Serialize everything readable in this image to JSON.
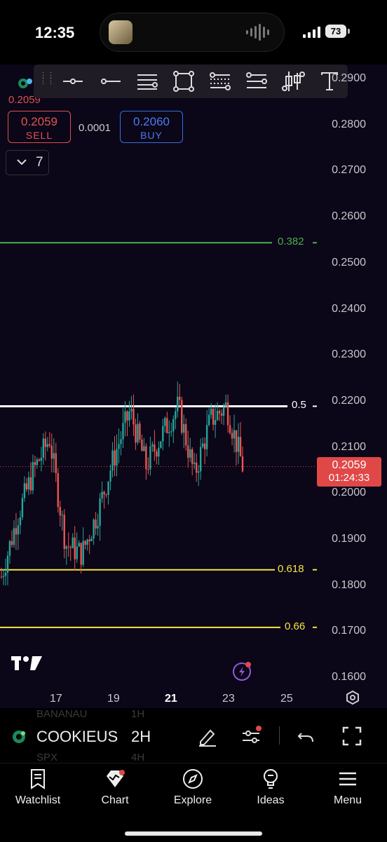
{
  "status_bar": {
    "time": "12:35",
    "battery": "73"
  },
  "toolbar": {
    "tools": [
      "horizontal-ray-icon",
      "ray-icon",
      "parallel-channel-icon",
      "rectangle-icon",
      "fib-retracement-icon",
      "fib-extension-icon",
      "candles-icon",
      "text-tool-icon"
    ]
  },
  "chart": {
    "legend_price": "0.2059",
    "sell": {
      "price": "0.2059",
      "label": "SELL"
    },
    "spread": "0.0001",
    "buy": {
      "price": "0.2060",
      "label": "BUY"
    },
    "indicators_count": "7",
    "price_axis": [
      "0.2900",
      "0.2800",
      "0.2700",
      "0.2600",
      "0.2500",
      "0.2400",
      "0.2300",
      "0.2200",
      "0.2100",
      "0.2000",
      "0.1900",
      "0.1800",
      "0.1700",
      "0.1600"
    ],
    "date_axis": [
      "17",
      "19",
      "21",
      "23",
      "25"
    ],
    "current_price": "0.2059",
    "countdown": "01:24:33",
    "fib_levels": [
      {
        "label": "0.382",
        "color": "#4caf50"
      },
      {
        "label": "0.5",
        "color": "#ffffff"
      },
      {
        "label": "0.618",
        "color": "#f5e642"
      },
      {
        "label": "0.66",
        "color": "#f5e642"
      }
    ],
    "colors": {
      "up": "#26a69a",
      "down": "#ef5350",
      "background": "#0b0618"
    }
  },
  "chart_data": {
    "type": "candlestick",
    "x": [
      "16",
      "17",
      "18",
      "19",
      "20",
      "21",
      "22",
      "23"
    ],
    "xlabel": "",
    "ylabel": "",
    "ylim": [
      0.16,
      0.29
    ],
    "close_series": [
      0.182,
      0.195,
      0.205,
      0.212,
      0.189,
      0.187,
      0.196,
      0.208,
      0.218,
      0.206,
      0.213,
      0.219,
      0.204,
      0.216,
      0.219,
      0.206
    ],
    "horizontal_levels": [
      {
        "name": "0.382",
        "value": 0.2545
      },
      {
        "name": "0.5",
        "value": 0.219
      },
      {
        "name": "0.618",
        "value": 0.1835
      },
      {
        "name": "0.66",
        "value": 0.171
      }
    ],
    "last_price": 0.2059,
    "grid": false
  },
  "symbol_bar": {
    "symbol": "COOKIEUS",
    "interval": "2H",
    "ghost_top_symbol": "BANANAU",
    "ghost_top_interval": "1H",
    "ghost_bottom_symbol": "SPX",
    "ghost_bottom_interval": "4H"
  },
  "tabs": [
    {
      "label": "Watchlist",
      "icon": "watchlist-icon"
    },
    {
      "label": "Chart",
      "icon": "chart-icon"
    },
    {
      "label": "Explore",
      "icon": "compass-icon"
    },
    {
      "label": "Ideas",
      "icon": "lightbulb-icon"
    },
    {
      "label": "Menu",
      "icon": "hamburger-icon"
    }
  ]
}
